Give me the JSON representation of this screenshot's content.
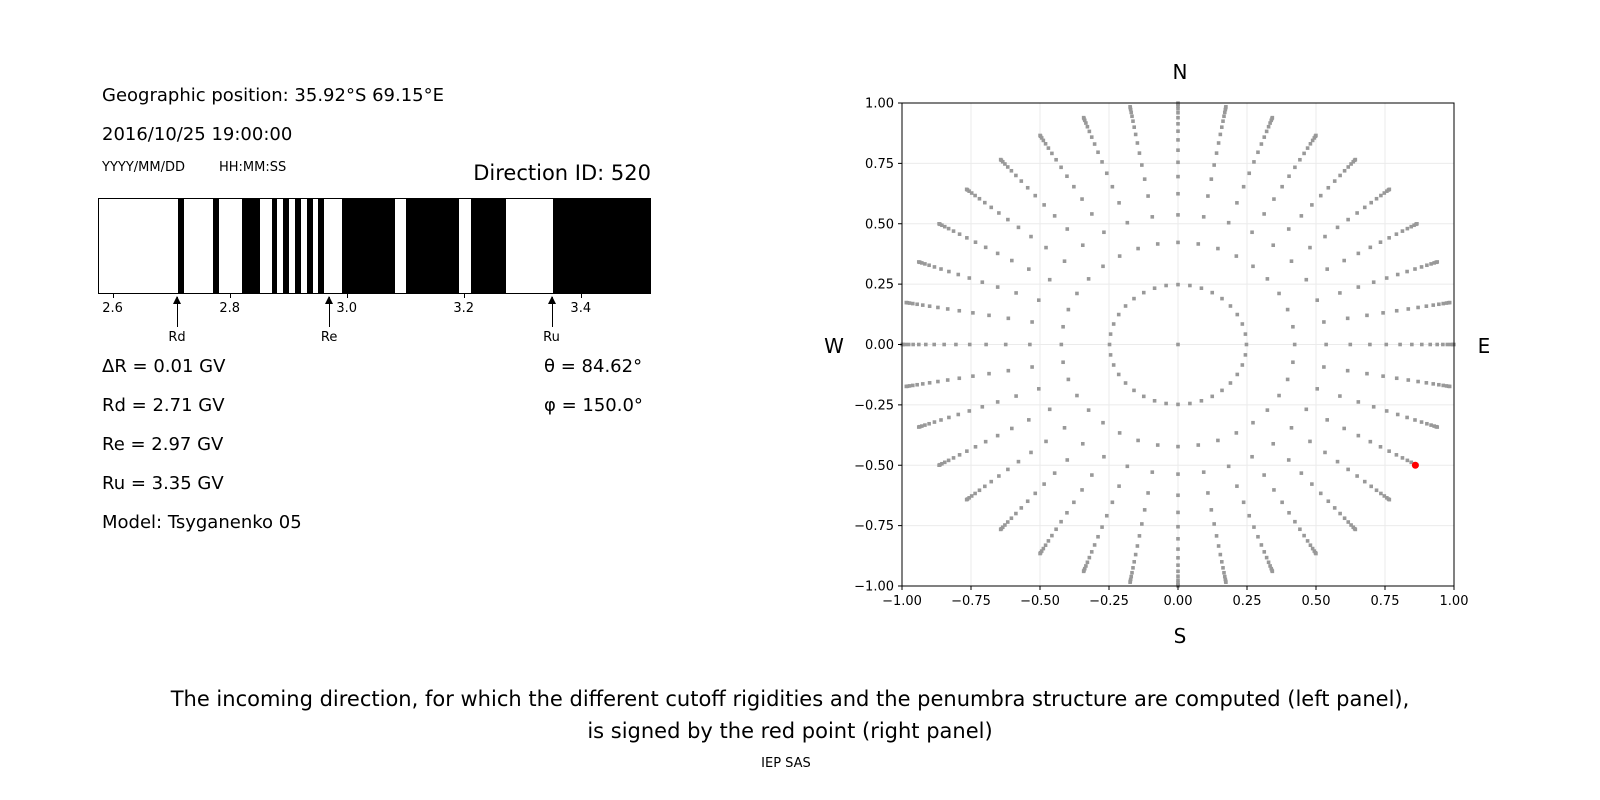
{
  "left_panel": {
    "position": "Geographic position: 35.92°S 69.15°E",
    "datetime": "2016/10/25 19:00:00",
    "date_format": "YYYY/MM/DD",
    "time_format": "HH:MM:SS",
    "direction_id": "Direction ID: 520",
    "delta_r": "ΔR = 0.01 GV",
    "rd": "Rd = 2.71 GV",
    "re": "Re = 2.97 GV",
    "ru": "Ru = 3.35 GV",
    "model": "Model: Tsyganenko 05",
    "theta": "θ = 84.62°",
    "phi": "φ = 150.0°"
  },
  "caption": {
    "line1": "The incoming direction, for which the different cutoff rigidities and the penumbra structure are computed (left panel),",
    "line2": "is signed by the red point (right panel)",
    "credit": "IEP SAS"
  },
  "chart_data": [
    {
      "type": "bar",
      "description_kind": "penumbra structure (black = forbidden, white = allowed)",
      "xlim": [
        2.575,
        3.52
      ],
      "xticks": [
        "2.6",
        "2.8",
        "3.0",
        "3.2",
        "3.4"
      ],
      "xtick_values": [
        2.6,
        2.8,
        3.0,
        3.2,
        3.4
      ],
      "black_intervals": [
        [
          2.71,
          2.72
        ],
        [
          2.77,
          2.78
        ],
        [
          2.82,
          2.85
        ],
        [
          2.87,
          2.88
        ],
        [
          2.89,
          2.9
        ],
        [
          2.91,
          2.92
        ],
        [
          2.93,
          2.94
        ],
        [
          2.95,
          2.96
        ],
        [
          2.99,
          3.08
        ],
        [
          3.1,
          3.19
        ],
        [
          3.21,
          3.27
        ],
        [
          3.35,
          3.52
        ]
      ],
      "markers": [
        {
          "label": "Rd",
          "value": 2.71
        },
        {
          "label": "Re",
          "value": 2.97
        },
        {
          "label": "Ru",
          "value": 3.35
        }
      ],
      "colors": {
        "forbidden": "#000000",
        "allowed": "#ffffff"
      }
    },
    {
      "type": "scatter",
      "xlim": [
        -1,
        1
      ],
      "ylim": [
        -1,
        1
      ],
      "xticks": [
        "−1.00",
        "−0.75",
        "−0.50",
        "−0.25",
        "0.00",
        "0.25",
        "0.50",
        "0.75",
        "1.00"
      ],
      "yticks": [
        "−1.00",
        "−0.75",
        "−0.50",
        "−0.25",
        "0.00",
        "0.25",
        "0.50",
        "0.75",
        "1.00"
      ],
      "tick_values": [
        -1,
        -0.75,
        -0.5,
        -0.25,
        0,
        0.25,
        0.5,
        0.75,
        1
      ],
      "grid": true,
      "compass": {
        "north": "N",
        "south": "S",
        "west": "W",
        "east": "E"
      },
      "ring_zenith_cos": [
        0.96875,
        0.90625,
        0.84375,
        0.78125,
        0.71875,
        0.65625,
        0.59375,
        0.53125,
        0.46875,
        0.40625,
        0.34375,
        0.28125,
        0.21875,
        0.15625,
        0.09375,
        0.03125
      ],
      "azimuth_step_deg": 10,
      "center_point": [
        0,
        0
      ],
      "highlight_point": {
        "x": 0.86,
        "y": -0.5,
        "color": "#ff0000"
      },
      "point_color": "#999999"
    }
  ]
}
